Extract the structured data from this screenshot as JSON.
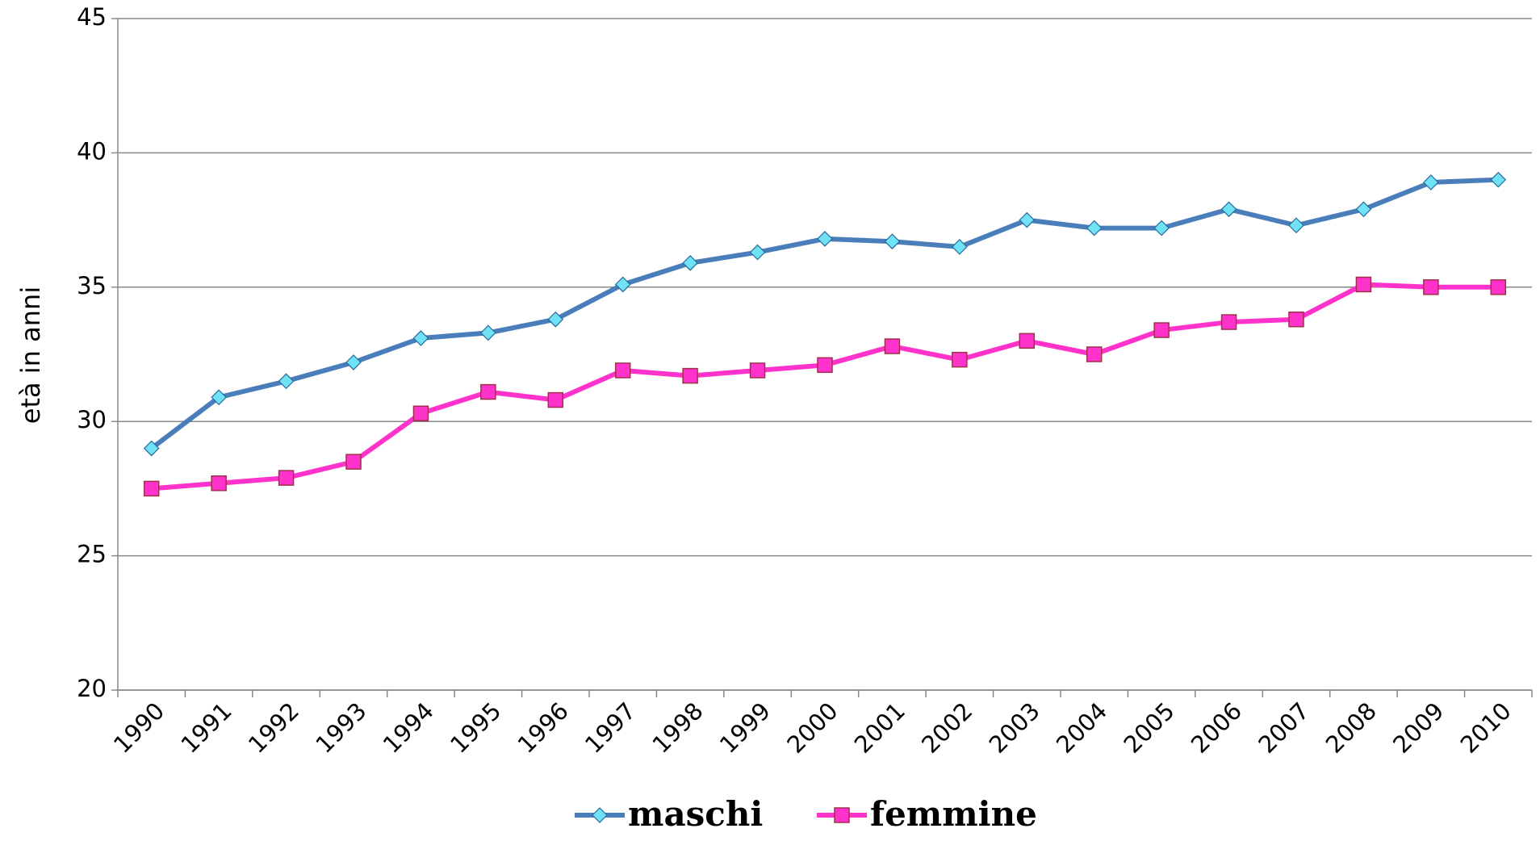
{
  "chart_data": {
    "type": "line",
    "y_label": "età in anni",
    "categories": [
      "1990",
      "1991",
      "1992",
      "1993",
      "1994",
      "1995",
      "1996",
      "1997",
      "1998",
      "1999",
      "2000",
      "2001",
      "2002",
      "2003",
      "2004",
      "2005",
      "2006",
      "2007",
      "2008",
      "2009",
      "2010"
    ],
    "series": [
      {
        "name": "maschi",
        "color": "#4a7ebb",
        "marker": "diamond",
        "marker_color": "#6fe3f5",
        "values": [
          29.0,
          30.9,
          31.5,
          32.2,
          33.1,
          33.3,
          33.8,
          35.1,
          35.9,
          36.3,
          36.8,
          36.7,
          36.5,
          37.5,
          37.2,
          37.2,
          37.9,
          37.3,
          37.9,
          38.9,
          39.0
        ]
      },
      {
        "name": "femmine",
        "color": "#ff33cc",
        "marker": "square",
        "marker_color": "#ff33cc",
        "values": [
          27.5,
          27.7,
          27.9,
          28.5,
          30.3,
          31.1,
          30.8,
          31.9,
          31.7,
          31.9,
          32.1,
          32.8,
          32.3,
          33.0,
          32.5,
          33.4,
          33.7,
          33.8,
          35.1,
          35.0,
          35.0
        ]
      }
    ],
    "ylim": [
      20,
      45
    ],
    "yticks": [
      20,
      25,
      30,
      35,
      40,
      45
    ],
    "grid": true,
    "legend": "bottom"
  }
}
